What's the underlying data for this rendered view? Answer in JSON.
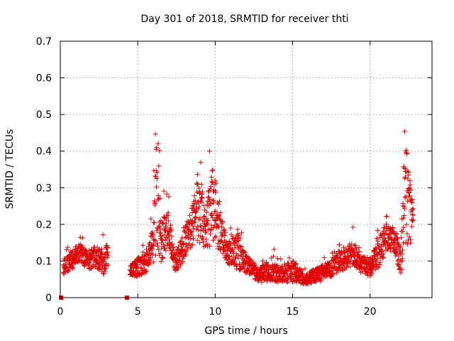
{
  "chart_data": {
    "type": "scatter",
    "title": "Day 301 of 2018, SRMTID for receiver thti",
    "xlabel": "GPS time / hours",
    "ylabel": "SRMTID / TECUs",
    "xlim": [
      0,
      24
    ],
    "ylim": [
      0,
      0.7
    ],
    "xticks": [
      "0",
      "5",
      "10",
      "15",
      "20"
    ],
    "yticks": [
      "0",
      "0.1",
      "0.2",
      "0.3",
      "0.4",
      "0.5",
      "0.6",
      "0.7"
    ],
    "grid": true,
    "marker": "plus",
    "color": "#e00000",
    "zero_points_x": [
      0.05,
      4.3
    ],
    "envelope": [
      {
        "x": 0.2,
        "base": 0.08,
        "spread": 0.04
      },
      {
        "x": 0.8,
        "base": 0.1,
        "spread": 0.05
      },
      {
        "x": 1.2,
        "base": 0.12,
        "spread": 0.06
      },
      {
        "x": 1.8,
        "base": 0.1,
        "spread": 0.05
      },
      {
        "x": 2.3,
        "base": 0.11,
        "spread": 0.06
      },
      {
        "x": 2.8,
        "base": 0.09,
        "spread": 0.06
      },
      {
        "x": 3.1,
        "base": 0.12,
        "spread": 0.07
      },
      {
        "x": 3.2,
        "gap": true
      },
      {
        "x": 4.4,
        "gap_end": true
      },
      {
        "x": 4.5,
        "base": 0.07,
        "spread": 0.03
      },
      {
        "x": 5.0,
        "base": 0.08,
        "spread": 0.05
      },
      {
        "x": 5.6,
        "base": 0.1,
        "spread": 0.07
      },
      {
        "x": 6.0,
        "base": 0.14,
        "spread": 0.1
      },
      {
        "x": 6.25,
        "base": 0.3,
        "spread": 0.38
      },
      {
        "x": 6.5,
        "base": 0.15,
        "spread": 0.12
      },
      {
        "x": 7.0,
        "base": 0.18,
        "spread": 0.1
      },
      {
        "x": 7.4,
        "base": 0.09,
        "spread": 0.05
      },
      {
        "x": 7.9,
        "base": 0.13,
        "spread": 0.08
      },
      {
        "x": 8.4,
        "base": 0.18,
        "spread": 0.1
      },
      {
        "x": 8.9,
        "base": 0.24,
        "spread": 0.2
      },
      {
        "x": 9.4,
        "base": 0.18,
        "spread": 0.1
      },
      {
        "x": 9.8,
        "base": 0.25,
        "spread": 0.24
      },
      {
        "x": 10.3,
        "base": 0.18,
        "spread": 0.12
      },
      {
        "x": 10.8,
        "base": 0.12,
        "spread": 0.06
      },
      {
        "x": 11.5,
        "base": 0.12,
        "spread": 0.1
      },
      {
        "x": 12.0,
        "base": 0.09,
        "spread": 0.05
      },
      {
        "x": 12.8,
        "base": 0.06,
        "spread": 0.04
      },
      {
        "x": 13.5,
        "base": 0.07,
        "spread": 0.06
      },
      {
        "x": 14.2,
        "base": 0.06,
        "spread": 0.04
      },
      {
        "x": 15.0,
        "base": 0.07,
        "spread": 0.06
      },
      {
        "x": 15.8,
        "base": 0.05,
        "spread": 0.03
      },
      {
        "x": 16.5,
        "base": 0.06,
        "spread": 0.04
      },
      {
        "x": 17.3,
        "base": 0.07,
        "spread": 0.05
      },
      {
        "x": 18.1,
        "base": 0.1,
        "spread": 0.06
      },
      {
        "x": 18.8,
        "base": 0.11,
        "spread": 0.07
      },
      {
        "x": 19.4,
        "base": 0.09,
        "spread": 0.05
      },
      {
        "x": 20.0,
        "base": 0.08,
        "spread": 0.05
      },
      {
        "x": 20.6,
        "base": 0.12,
        "spread": 0.08
      },
      {
        "x": 21.1,
        "base": 0.17,
        "spread": 0.1
      },
      {
        "x": 21.6,
        "base": 0.14,
        "spread": 0.07
      },
      {
        "x": 22.0,
        "base": 0.11,
        "spread": 0.1
      },
      {
        "x": 22.3,
        "base": 0.28,
        "spread": 0.36
      },
      {
        "x": 22.8,
        "base": 0.2,
        "spread": 0.08
      }
    ]
  }
}
